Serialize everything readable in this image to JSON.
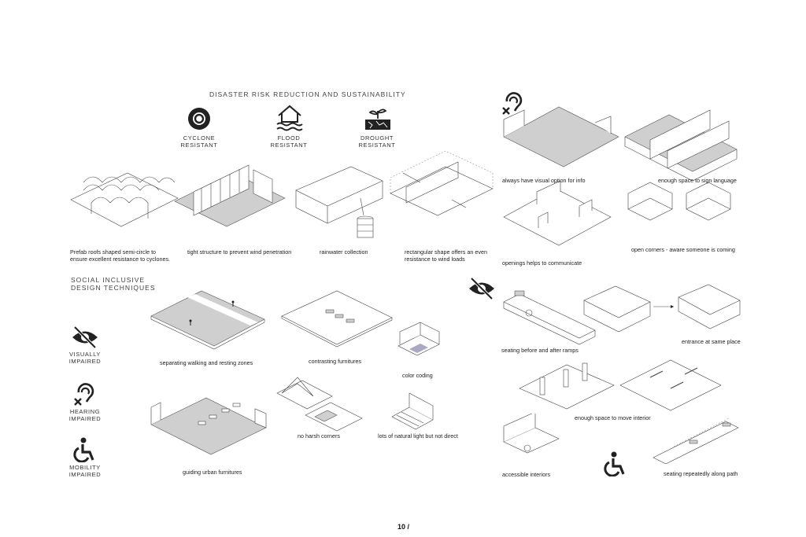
{
  "disaster": {
    "title": "DISASTER RISK REDUCTION AND SUSTAINABILITY",
    "icons": [
      {
        "name": "cyclone-icon",
        "line1": "CYCLONE",
        "line2": "RESISTANT"
      },
      {
        "name": "flood-icon",
        "line1": "FLOOD",
        "line2": "RESISTANT"
      },
      {
        "name": "drought-icon",
        "line1": "DROUGHT",
        "line2": "RESISTANT"
      }
    ],
    "captions": {
      "roofs_1": "Prefab roofs shaped semi-circle to",
      "roofs_2": "ensure excellent resistance to cyclones.",
      "tight": "tight structure to prevent wind penetration",
      "rain": "rainwater collection",
      "rect_1": "rectangular shape offers an even",
      "rect_2": "resistance to wind loads"
    }
  },
  "social": {
    "title_1": "SOCIAL INCLUSIVE",
    "title_2": "DESIGN TECHNIQUES",
    "categories": [
      {
        "name": "visually-impaired-icon",
        "line1": "VISUALLY",
        "line2": "IMPAIRED"
      },
      {
        "name": "hearing-impaired-icon",
        "line1": "HEARING",
        "line2": "IMPAIRED"
      },
      {
        "name": "mobility-impaired-icon",
        "line1": "MOBILITY",
        "line2": "IMPAIRED"
      }
    ],
    "captions": {
      "separating": "separating walking and resting zones",
      "contrasting": "contrasting furnitures",
      "color": "color coding",
      "guiding": "guiding urban furnitures",
      "harsh": "no harsh corners",
      "light": "lots of natural light but not direct"
    }
  },
  "right": {
    "captions": {
      "visual_info": "always have visual option for info",
      "sign_space": "enough space to sign language",
      "openings": "openings helps to communicate",
      "open_corners": "open corners - aware someone is coming",
      "seating_ramps": "seating before and after ramps",
      "entrance": "entrance at same place",
      "move_interior": "enough space to move interior",
      "accessible": "accessible interiors",
      "seating_path": "seating repeatedly along path"
    }
  },
  "page": {
    "number": "10 /"
  }
}
